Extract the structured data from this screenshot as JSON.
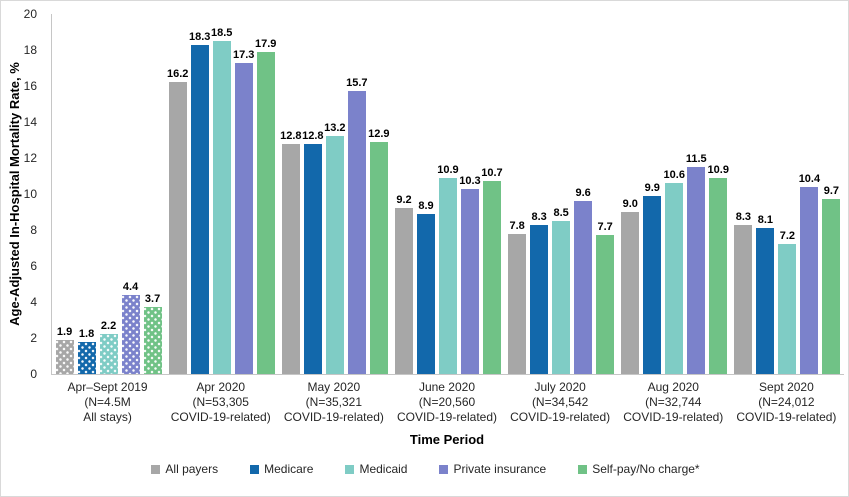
{
  "chart_data": {
    "type": "bar",
    "title": "",
    "ylabel": "Age-Adjusted In-Hospital Mortality Rate, %",
    "xlabel": "Time Period",
    "ylim": [
      0,
      20
    ],
    "ytick_step": 2,
    "yticks": [
      0,
      2,
      4,
      6,
      8,
      10,
      12,
      14,
      16,
      18,
      20
    ],
    "grid": false,
    "legend_position": "bottom",
    "value_label_decimals": 1,
    "patterned_group_index": 0,
    "categories": [
      {
        "lines": [
          "Apr–Sept 2019",
          "(N=4.5M",
          "All stays)"
        ]
      },
      {
        "lines": [
          "Apr 2020",
          "(N=53,305",
          "COVID-19-related)"
        ]
      },
      {
        "lines": [
          "May 2020",
          "(N=35,321",
          "COVID-19-related)"
        ]
      },
      {
        "lines": [
          "June 2020",
          "(N=20,560",
          "COVID-19-related)"
        ]
      },
      {
        "lines": [
          "July 2020",
          "(N=34,542",
          "COVID-19-related)"
        ]
      },
      {
        "lines": [
          "Aug 2020",
          "(N=32,744",
          "COVID-19-related)"
        ]
      },
      {
        "lines": [
          "Sept 2020",
          "(N=24,012",
          "COVID-19-related)"
        ]
      }
    ],
    "series": [
      {
        "name": "All payers",
        "color": "#a7a7a7",
        "values": [
          1.9,
          16.2,
          12.8,
          9.2,
          7.8,
          9.0,
          8.3
        ]
      },
      {
        "name": "Medicare",
        "color": "#1268ab",
        "values": [
          1.8,
          18.3,
          12.8,
          8.9,
          8.3,
          9.9,
          8.1
        ]
      },
      {
        "name": "Medicaid",
        "color": "#7fccc5",
        "values": [
          2.2,
          18.5,
          13.2,
          10.9,
          8.5,
          10.6,
          7.2
        ]
      },
      {
        "name": "Private insurance",
        "color": "#7b82cb",
        "values": [
          4.4,
          17.3,
          15.7,
          10.3,
          9.6,
          11.5,
          10.4
        ]
      },
      {
        "name": "Self-pay/No charge*",
        "color": "#70c286",
        "values": [
          3.7,
          17.9,
          12.9,
          10.7,
          7.7,
          10.9,
          9.7
        ]
      }
    ]
  }
}
